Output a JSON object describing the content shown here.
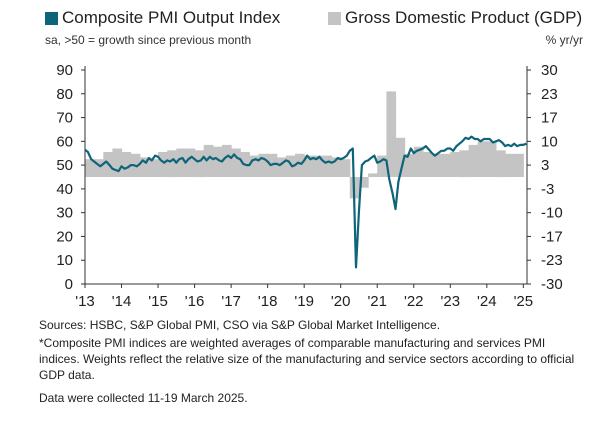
{
  "legend": {
    "pmi_label": "Composite PMI Output Index",
    "gdp_label": "Gross Domestic Product (GDP)",
    "left_note": "sa, >50 = growth since previous month",
    "right_unit": "% yr/yr"
  },
  "colors": {
    "pmi": "#0e6478",
    "gdp": "#c4c4c4"
  },
  "notes": {
    "sources": "Sources: HSBC, S&P Global PMI, CSO via S&P Global Market Intelligence.",
    "footnote": "*Composite PMI indices are weighted averages of comparable manufacturing and services PMI indices. Weights reflect the relative size of the manufacturing and service sectors according to official GDP data.",
    "collected": "Data were collected 11-19 March 2025."
  },
  "chart_data": {
    "type": "line",
    "x_ticks": [
      "'13",
      "'14",
      "'15",
      "'16",
      "'17",
      "'18",
      "'19",
      "'20",
      "'21",
      "'22",
      "'23",
      "'24",
      "'25"
    ],
    "y_left": {
      "ticks": [
        0,
        10,
        20,
        30,
        40,
        50,
        60,
        70,
        80,
        90
      ],
      "range": [
        0,
        90
      ]
    },
    "y_right": {
      "ticks": [
        "30",
        "23",
        "17",
        "10",
        "3",
        "-3",
        "-10",
        "-17",
        "-23",
        "-30"
      ],
      "range": [
        -30,
        30
      ],
      "unit": "% yr/yr"
    },
    "grid": false,
    "series": [
      {
        "name": "Composite PMI Output Index",
        "axis": "left",
        "kind": "line",
        "x": [
          2013.0,
          2013.08,
          2013.17,
          2013.25,
          2013.33,
          2013.42,
          2013.5,
          2013.58,
          2013.67,
          2013.75,
          2013.83,
          2013.92,
          2014.0,
          2014.08,
          2014.17,
          2014.25,
          2014.33,
          2014.42,
          2014.5,
          2014.58,
          2014.67,
          2014.75,
          2014.83,
          2014.92,
          2015.0,
          2015.08,
          2015.17,
          2015.25,
          2015.33,
          2015.42,
          2015.5,
          2015.58,
          2015.67,
          2015.75,
          2015.83,
          2015.92,
          2016.0,
          2016.08,
          2016.17,
          2016.25,
          2016.33,
          2016.42,
          2016.5,
          2016.58,
          2016.67,
          2016.75,
          2016.83,
          2016.92,
          2017.0,
          2017.08,
          2017.17,
          2017.25,
          2017.33,
          2017.42,
          2017.5,
          2017.58,
          2017.67,
          2017.75,
          2017.83,
          2017.92,
          2018.0,
          2018.08,
          2018.17,
          2018.25,
          2018.33,
          2018.42,
          2018.5,
          2018.58,
          2018.67,
          2018.75,
          2018.83,
          2018.92,
          2019.0,
          2019.08,
          2019.17,
          2019.25,
          2019.33,
          2019.42,
          2019.5,
          2019.58,
          2019.67,
          2019.75,
          2019.83,
          2019.92,
          2020.0,
          2020.08,
          2020.17,
          2020.25,
          2020.33,
          2020.42,
          2020.5,
          2020.58,
          2020.67,
          2020.75,
          2020.83,
          2020.92,
          2021.0,
          2021.08,
          2021.17,
          2021.25,
          2021.33,
          2021.42,
          2021.5,
          2021.58,
          2021.67,
          2021.75,
          2021.83,
          2021.92,
          2022.0,
          2022.08,
          2022.17,
          2022.25,
          2022.33,
          2022.42,
          2022.5,
          2022.58,
          2022.67,
          2022.75,
          2022.83,
          2022.92,
          2023.0,
          2023.08,
          2023.17,
          2023.25,
          2023.33,
          2023.42,
          2023.5,
          2023.58,
          2023.67,
          2023.75,
          2023.83,
          2023.92,
          2024.0,
          2024.08,
          2024.17,
          2024.25,
          2024.33,
          2024.42,
          2024.5,
          2024.58,
          2024.67,
          2024.75,
          2024.83,
          2024.92,
          2025.0,
          2025.08
        ],
        "values": [
          56.5,
          55.5,
          52.5,
          51.5,
          50.5,
          49.5,
          50.5,
          51.5,
          50.0,
          48.5,
          48.0,
          47.5,
          49.5,
          48.5,
          49.0,
          50.0,
          50.0,
          49.5,
          50.5,
          52.0,
          51.0,
          53.0,
          52.0,
          54.0,
          53.5,
          52.0,
          51.0,
          52.0,
          51.5,
          52.5,
          51.0,
          52.5,
          53.0,
          51.0,
          52.5,
          53.5,
          52.5,
          51.5,
          52.0,
          53.5,
          52.0,
          53.5,
          52.5,
          53.0,
          52.0,
          51.5,
          53.0,
          54.0,
          53.0,
          54.5,
          53.0,
          52.5,
          50.5,
          50.0,
          50.0,
          52.0,
          52.5,
          52.0,
          53.0,
          52.5,
          51.5,
          50.0,
          50.5,
          50.5,
          50.0,
          51.0,
          52.0,
          51.5,
          49.5,
          50.0,
          51.0,
          50.5,
          52.0,
          54.0,
          52.5,
          53.0,
          52.5,
          53.5,
          52.0,
          51.0,
          51.5,
          51.0,
          51.5,
          53.0,
          52.5,
          53.0,
          54.0,
          56.0,
          57.0,
          7.0,
          31.0,
          50.0,
          51.5,
          52.0,
          53.0,
          54.0,
          51.0,
          51.5,
          52.5,
          52.0,
          44.0,
          38.0,
          31.5,
          43.0,
          49.0,
          54.0,
          53.5,
          57.0,
          55.0,
          56.0,
          56.5,
          57.0,
          58.0,
          56.5,
          55.0,
          54.0,
          55.0,
          56.0,
          56.0,
          57.0,
          57.0,
          56.0,
          58.0,
          59.0,
          60.0,
          61.5,
          61.0,
          62.0,
          61.0,
          61.0,
          60.0,
          61.0,
          61.0,
          61.0,
          59.5,
          60.0,
          60.5,
          59.5,
          58.0,
          58.5,
          58.0,
          59.0,
          58.0,
          58.5,
          58.5,
          59.0
        ]
      },
      {
        "name": "Gross Domestic Product (GDP)",
        "axis": "right",
        "kind": "bar",
        "quarters": [
          2013.0,
          2013.25,
          2013.5,
          2013.75,
          2014.0,
          2014.25,
          2014.5,
          2014.75,
          2015.0,
          2015.25,
          2015.5,
          2015.75,
          2016.0,
          2016.25,
          2016.5,
          2016.75,
          2017.0,
          2017.25,
          2017.5,
          2017.75,
          2018.0,
          2018.25,
          2018.5,
          2018.75,
          2019.0,
          2019.25,
          2019.5,
          2019.75,
          2020.0,
          2020.25,
          2020.5,
          2020.75,
          2021.0,
          2021.25,
          2021.5,
          2021.75,
          2022.0,
          2022.25,
          2022.5,
          2022.75,
          2023.0,
          2023.25,
          2023.5,
          2023.75,
          2024.0,
          2024.25,
          2024.5,
          2024.75
        ],
        "values": [
          5.0,
          5.0,
          7.0,
          8.0,
          7.0,
          6.5,
          5.5,
          5.0,
          7.0,
          7.5,
          8.0,
          8.0,
          7.5,
          9.0,
          8.5,
          9.0,
          8.0,
          7.0,
          6.0,
          6.5,
          6.5,
          5.5,
          6.0,
          6.5,
          6.0,
          6.0,
          6.0,
          5.5,
          5.0,
          -6.0,
          -3.0,
          1.0,
          6.0,
          24.0,
          11.0,
          6.5,
          8.5,
          7.0,
          6.5,
          6.5,
          7.0,
          7.5,
          9.0,
          10.0,
          10.0,
          7.5,
          6.5,
          6.5
        ]
      }
    ]
  }
}
